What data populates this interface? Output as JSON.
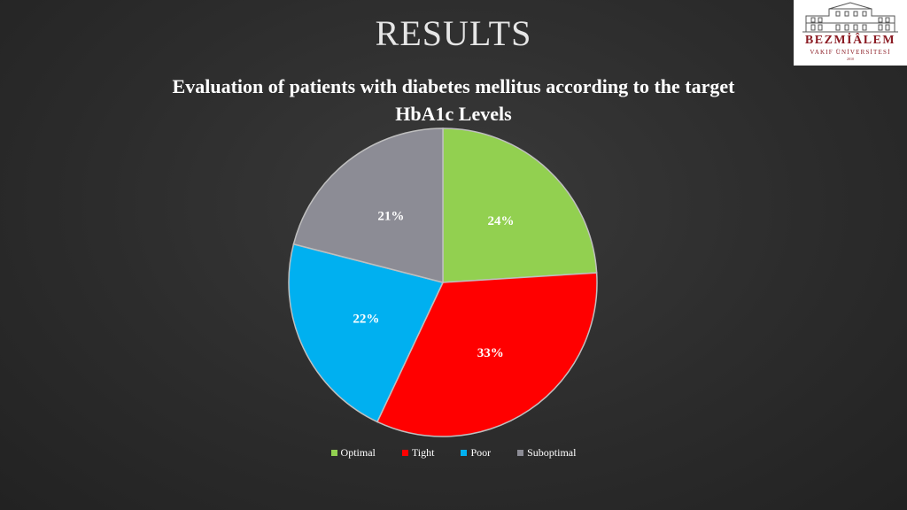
{
  "title": "RESULTS",
  "subtitle_line1": "Evaluation of patients with diabetes mellitus according to the target",
  "subtitle_line2": "HbA1c Levels",
  "logo": {
    "name": "BEZMİÂLEM",
    "line2": "VAKIF ÜNİVERSİTESİ",
    "year": "2010"
  },
  "chart_data": {
    "type": "pie",
    "slices": [
      {
        "label": "Optimal",
        "value": 24,
        "display": "24%",
        "color": "#92d050"
      },
      {
        "label": "Tight",
        "value": 33,
        "display": "33%",
        "color": "#ff0000"
      },
      {
        "label": "Poor",
        "value": 22,
        "display": "22%",
        "color": "#00b0f0"
      },
      {
        "label": "Suboptimal",
        "value": 21,
        "display": "21%",
        "color": "#8c8c95"
      }
    ],
    "legend_position": "bottom"
  }
}
